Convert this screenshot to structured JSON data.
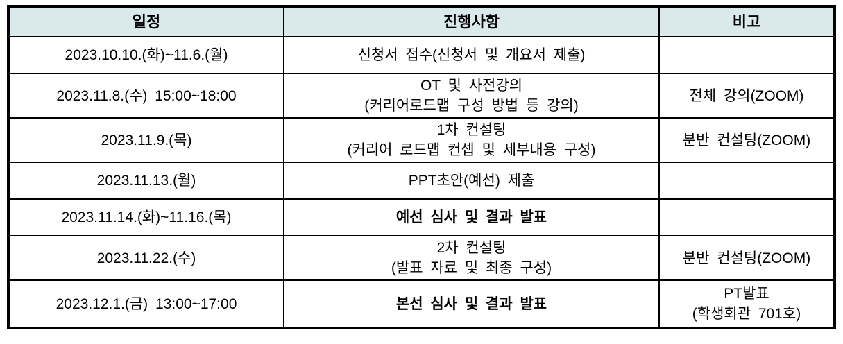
{
  "table": {
    "headers": [
      "일정",
      "진행사항",
      "비고"
    ],
    "rows": [
      {
        "schedule": "2023.10.10.(화)~11.6.(월)",
        "progress": "신청서 접수(신청서 및 개요서 제출)",
        "note": ""
      },
      {
        "schedule": "2023.11.8.(수) 15:00~18:00",
        "progress": "OT 및 사전강의\n(커리어로드맵 구성 방법 등 강의)",
        "note": "전체 강의(ZOOM)"
      },
      {
        "schedule": "2023.11.9.(목)",
        "progress": "1차 컨설팅\n(커리어 로드맵 컨셉 및 세부내용 구성)",
        "note": "분반 컨설팅(ZOOM)"
      },
      {
        "schedule": "2023.11.13.(월)",
        "progress": "PPT초안(예선) 제출",
        "note": ""
      },
      {
        "schedule": "2023.11.14.(화)~11.16.(목)",
        "progress": "예선 심사 및 결과 발표",
        "note": ""
      },
      {
        "schedule": "2023.11.22.(수)",
        "progress": "2차 컨설팅\n(발표 자료 및 최종 구성)",
        "note": "분반 컨설팅(ZOOM)"
      },
      {
        "schedule": "2023.12.1.(금) 13:00~17:00",
        "progress": "본선 심사 및 결과 발표",
        "note": "PT발표\n(학생회관 701호)"
      }
    ]
  },
  "colors": {
    "header_background": "#d9e9ec",
    "border": "#000000",
    "text": "#000000"
  }
}
